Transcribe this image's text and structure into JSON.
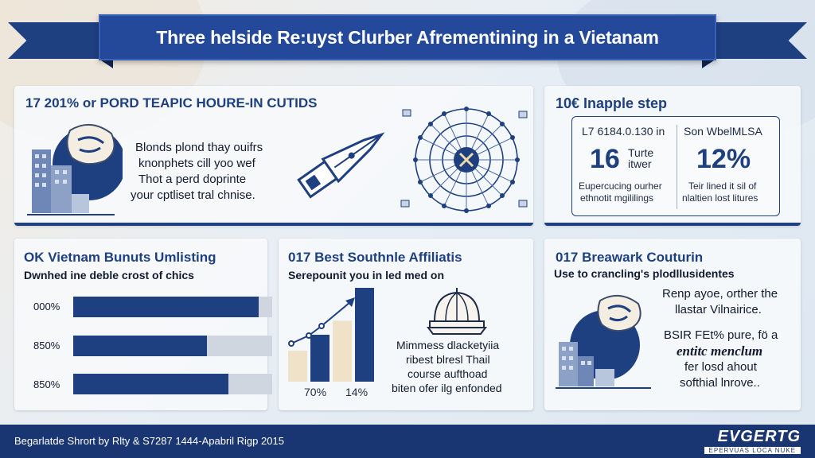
{
  "title": "Three helside Re:uyst Clurber Afrementining in a Vietanam",
  "panel_top_left": {
    "title": "17 201% or PORD TEAPIC HOURE-IN CUTIDS",
    "lines": [
      "Blonds plond thay ouifrs",
      "knonphets cill yoo wef",
      "Thot a perd doprinte",
      "your cptliset tral chnise."
    ]
  },
  "panel_top_right": {
    "title": "10€ Inapple step",
    "left_label": "L7 6184.0.130 in",
    "left_big": "16",
    "left_big_side": [
      "Turte",
      "itwer"
    ],
    "left_caption": [
      "Eupercucing ourher",
      "ethnotit mgililings"
    ],
    "right_label": "Son WbelMLSA",
    "right_big": "12%",
    "right_caption": [
      "Teir lined it sil of",
      "nlaltien lost litures"
    ]
  },
  "panel_bottom_left": {
    "title": "OK Vietnam Bunuts Umlisting",
    "subtitle": "Dwnhed ine deble crost of chics",
    "bars": [
      {
        "label": "000%",
        "fill": 0.93
      },
      {
        "label": "850%",
        "fill": 0.67
      },
      {
        "label": "850%",
        "fill": 0.78
      }
    ]
  },
  "panel_bottom_mid": {
    "title": "017 Best Southnle Affiliatis",
    "subtitle": "Serepounit you in led med on",
    "chart": {
      "heights": [
        0.33,
        0.5,
        0.65,
        1.0
      ]
    },
    "tick_labels": [
      "70%",
      "14%"
    ],
    "lines": [
      "Mimmess dlacketyiia",
      "ribest blresl Thail",
      "course aufthoad",
      "biten ofer ilg enfonded"
    ]
  },
  "panel_bottom_right": {
    "title": "017 Breawark Couturin",
    "subtitle": "Use to crancling's plodllusidentes",
    "lines_a": [
      "Renp ayoe, orther the",
      "llastar Vilnairice."
    ],
    "lines_b": [
      "BSIR FEt% pure, fö a",
      "entitc menclum",
      "fer losd ahout",
      "softhial lnrove.."
    ]
  },
  "footer": {
    "text": "Begarlatde Shrort by Rlty & S7287 1444-Apabril Rigp 2015",
    "logo": "EVGERTG",
    "logo_sub": "EPERVUAS LOCA NUKE"
  },
  "colors": {
    "navy": "#1e3f80",
    "dark": "#1a3672",
    "tan": "#efe2c9",
    "track": "#cfd6df"
  }
}
